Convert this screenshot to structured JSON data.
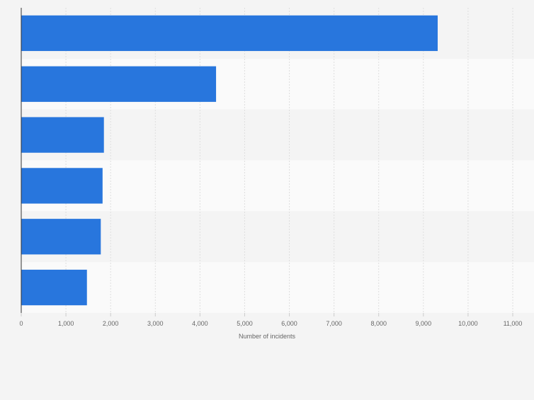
{
  "chart_data": {
    "type": "bar",
    "orientation": "horizontal",
    "categories": [
      "",
      "",
      "",
      "",
      "",
      ""
    ],
    "values": [
      9320,
      4360,
      1850,
      1820,
      1780,
      1470
    ],
    "xlabel": "Number of incidents",
    "xlim": [
      0,
      11000
    ],
    "xticks": [
      0,
      1000,
      2000,
      3000,
      4000,
      5000,
      6000,
      7000,
      8000,
      9000,
      10000,
      11000
    ],
    "xtick_labels": [
      "0",
      "1,000",
      "2,000",
      "3,000",
      "4,000",
      "5,000",
      "6,000",
      "7,000",
      "8,000",
      "9,000",
      "10,000",
      "11,000"
    ],
    "grid": true,
    "legend": "none",
    "colors": {
      "bar": "#2876dd",
      "band_odd": "#f4f4f4",
      "band_even": "#fafafa",
      "gridline": "#dedede",
      "axis": "#333333",
      "tick_text": "#666666"
    }
  }
}
